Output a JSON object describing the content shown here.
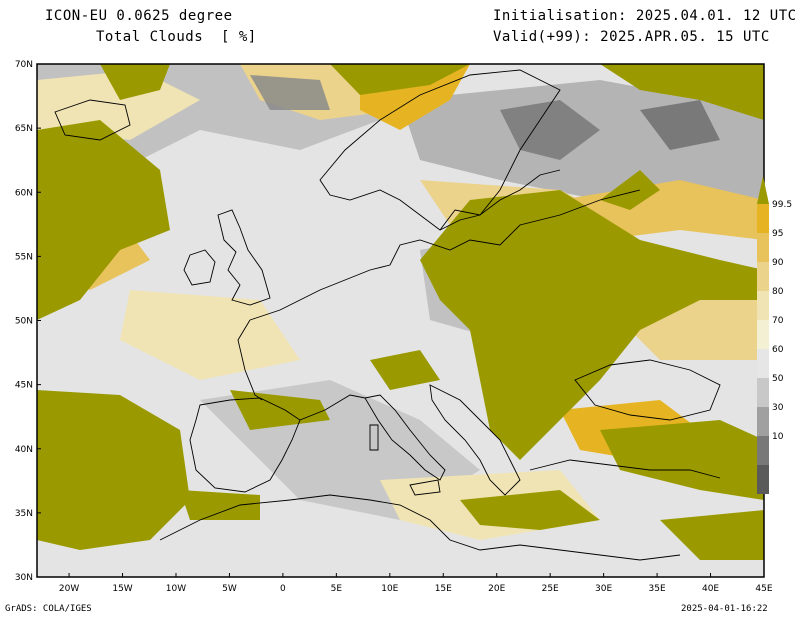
{
  "header": {
    "model": "ICON-EU 0.0625 degree",
    "variable": "Total Clouds  [ %]",
    "init": "Initialisation: 2025.04.01. 12 UTC",
    "valid": "Valid(+99): 2025.APR.05. 15 UTC"
  },
  "map": {
    "lat_labels": [
      "70N",
      "65N",
      "60N",
      "55N",
      "50N",
      "45N",
      "40N",
      "35N",
      "30N"
    ],
    "lon_labels": [
      "20W",
      "15W",
      "10W",
      "5W",
      "0",
      "5E",
      "10E",
      "15E",
      "20E",
      "25E",
      "30E",
      "35E",
      "40E",
      "45E"
    ],
    "lat_range": [
      30,
      70
    ],
    "lon_range": [
      -23,
      45
    ]
  },
  "colorbar": {
    "labels": [
      "99.5",
      "95",
      "90",
      "80",
      "70",
      "60",
      "50",
      "30",
      "10"
    ],
    "colors": [
      "#9a9a00",
      "#e6b422",
      "#e8c25a",
      "#ecd38c",
      "#f0e4b4",
      "#f4f0d4",
      "#e6e6e6",
      "#c8c8c8",
      "#a0a0a0",
      "#787878",
      "#5a5a5a"
    ]
  },
  "footer": {
    "left": "GrADS: COLA/IGES",
    "right": "2025-04-01-16:22"
  }
}
